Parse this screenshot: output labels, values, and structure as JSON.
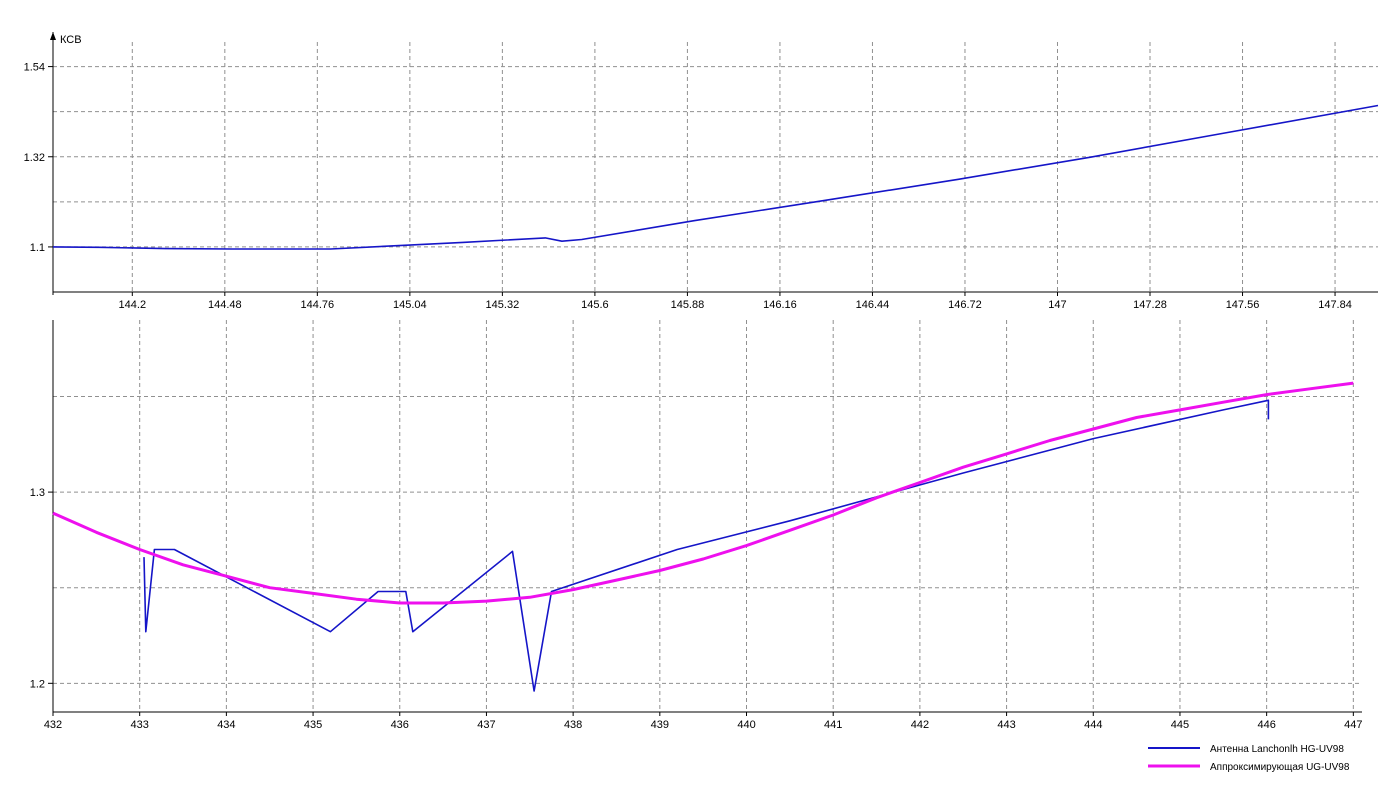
{
  "chart_data": [
    {
      "type": "line",
      "ylabel": "КСВ",
      "xlabel": "",
      "xlim": [
        143.96,
        147.97
      ],
      "ylim": [
        0.99,
        1.6
      ],
      "x_ticks": [
        144.2,
        144.48,
        144.76,
        145.04,
        145.32,
        145.6,
        145.88,
        146.16,
        146.44,
        146.72,
        147,
        147.28,
        147.56,
        147.84
      ],
      "x_tick_labels": [
        "144.2",
        "144.48",
        "144.76",
        "145.04",
        "145.32",
        "145.6",
        "145.88",
        "146.16",
        "146.44",
        "146.72",
        "147",
        "147.28",
        "147.56",
        "147.84"
      ],
      "y_ticks": [
        1.1,
        1.32,
        1.54
      ],
      "y_tick_labels": [
        "1.1",
        "1.32",
        "1.54"
      ],
      "grid": true,
      "colors": {
        "series": "#1515c8",
        "grid": "#909090",
        "axis": "#000000"
      },
      "series": [
        {
          "values": [
            [
              143.96,
              1.1
            ],
            [
              144.1,
              1.099
            ],
            [
              144.3,
              1.096
            ],
            [
              144.5,
              1.095
            ],
            [
              144.8,
              1.095
            ],
            [
              145.0,
              1.103
            ],
            [
              145.2,
              1.111
            ],
            [
              145.45,
              1.122
            ],
            [
              145.5,
              1.114
            ],
            [
              145.56,
              1.118
            ],
            [
              145.9,
              1.164
            ],
            [
              146.3,
              1.214
            ],
            [
              146.7,
              1.265
            ],
            [
              147.1,
              1.319
            ],
            [
              147.5,
              1.377
            ],
            [
              147.97,
              1.445
            ]
          ]
        }
      ]
    },
    {
      "type": "line",
      "xlabel": "",
      "ylabel": "",
      "xlim": [
        432,
        447.1
      ],
      "ylim": [
        1.185,
        1.39
      ],
      "x_ticks": [
        432,
        433,
        434,
        435,
        436,
        437,
        438,
        439,
        440,
        441,
        442,
        443,
        444,
        445,
        446,
        447
      ],
      "x_tick_labels": [
        "432",
        "433",
        "434",
        "435",
        "436",
        "437",
        "438",
        "439",
        "440",
        "441",
        "442",
        "443",
        "444",
        "445",
        "446",
        "447"
      ],
      "y_ticks": [
        1.2,
        1.3
      ],
      "y_tick_labels": [
        "1.2",
        "1.3"
      ],
      "grid": true,
      "legend": "bottom-right",
      "colors": {
        "grid": "#909090",
        "axis": "#000000"
      },
      "series": [
        {
          "name": "Антенна Lanchonlh HG-UV98",
          "color": "#1515c8",
          "values": [
            [
              433.05,
              1.266
            ],
            [
              433.07,
              1.227
            ],
            [
              433.17,
              1.27
            ],
            [
              433.4,
              1.27
            ],
            [
              435.2,
              1.227
            ],
            [
              435.75,
              1.248
            ],
            [
              436.07,
              1.248
            ],
            [
              436.15,
              1.227
            ],
            [
              437.3,
              1.269
            ],
            [
              437.55,
              1.196
            ],
            [
              437.75,
              1.248
            ],
            [
              439.2,
              1.27
            ],
            [
              440.5,
              1.285
            ],
            [
              442.5,
              1.31
            ],
            [
              444.0,
              1.328
            ],
            [
              445.5,
              1.343
            ],
            [
              446.02,
              1.348
            ],
            [
              446.02,
              1.338
            ]
          ]
        },
        {
          "name": "Аппроксимирующая UG-UV98",
          "color": "#ee10ee",
          "values": [
            [
              432.0,
              1.289
            ],
            [
              432.5,
              1.279
            ],
            [
              433.0,
              1.27
            ],
            [
              433.5,
              1.262
            ],
            [
              434.0,
              1.256
            ],
            [
              434.5,
              1.25
            ],
            [
              435.0,
              1.247
            ],
            [
              435.5,
              1.244
            ],
            [
              436.0,
              1.242
            ],
            [
              436.5,
              1.242
            ],
            [
              437.0,
              1.243
            ],
            [
              437.5,
              1.245
            ],
            [
              438.0,
              1.249
            ],
            [
              438.5,
              1.254
            ],
            [
              439.0,
              1.259
            ],
            [
              439.5,
              1.265
            ],
            [
              440.0,
              1.272
            ],
            [
              440.5,
              1.28
            ],
            [
              441.0,
              1.288
            ],
            [
              441.5,
              1.297
            ],
            [
              442.0,
              1.305
            ],
            [
              442.5,
              1.313
            ],
            [
              443.0,
              1.32
            ],
            [
              443.5,
              1.327
            ],
            [
              444.0,
              1.333
            ],
            [
              444.5,
              1.339
            ],
            [
              445.0,
              1.343
            ],
            [
              445.5,
              1.347
            ],
            [
              446.0,
              1.351
            ],
            [
              446.5,
              1.354
            ],
            [
              447.0,
              1.357
            ]
          ]
        }
      ]
    }
  ]
}
